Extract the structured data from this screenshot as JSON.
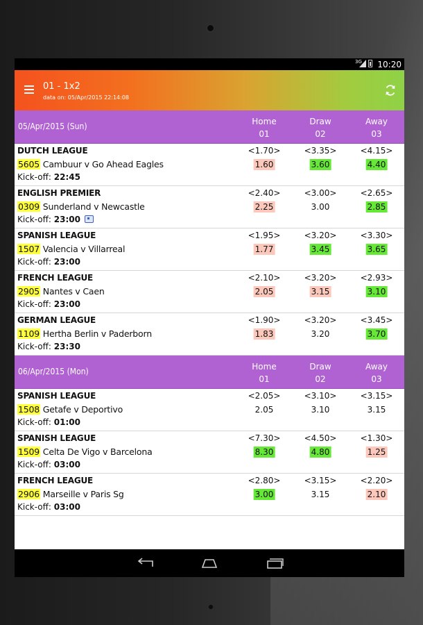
{
  "status_bar": {
    "network": "3G",
    "time": "10:20"
  },
  "app_bar": {
    "title": "01 - 1x2",
    "subtitle": "data on: 05/Apr/2015 22:14:08"
  },
  "icons": {
    "menu": "hamburger-menu-icon",
    "refresh": "refresh-icon"
  },
  "colors": {
    "header_purple": "#b062d2",
    "odds_up": "#fbc8bb",
    "odds_down": "#66e837",
    "code_highlight": "#ffff3a"
  },
  "sections": [
    {
      "date": "05/Apr/2015 (Sun)",
      "columns": [
        {
          "label": "Home",
          "code": "01"
        },
        {
          "label": "Draw",
          "code": "02"
        },
        {
          "label": "Away",
          "code": "03"
        }
      ],
      "matches": [
        {
          "league": "DUTCH LEAGUE",
          "code": "5605",
          "teams": "Cambuur v Go Ahead Eagles",
          "kick_label": "Kick-off:",
          "kick_time": "22:45",
          "tv": false,
          "odds": [
            {
              "orig": "<1.70>",
              "cur": "1.60",
              "trend": "up"
            },
            {
              "orig": "<3.35>",
              "cur": "3.60",
              "trend": "down"
            },
            {
              "orig": "<4.15>",
              "cur": "4.40",
              "trend": "down"
            }
          ]
        },
        {
          "league": "ENGLISH PREMIER",
          "code": "0309",
          "teams": "Sunderland v Newcastle",
          "kick_label": "Kick-off:",
          "kick_time": "23:00",
          "tv": true,
          "odds": [
            {
              "orig": "<2.40>",
              "cur": "2.25",
              "trend": "up"
            },
            {
              "orig": "<3.00>",
              "cur": "3.00",
              "trend": "none"
            },
            {
              "orig": "<2.65>",
              "cur": "2.85",
              "trend": "down"
            }
          ]
        },
        {
          "league": "SPANISH LEAGUE",
          "code": "1507",
          "teams": "Valencia v Villarreal",
          "kick_label": "Kick-off:",
          "kick_time": "23:00",
          "tv": false,
          "odds": [
            {
              "orig": "<1.95>",
              "cur": "1.77",
              "trend": "up"
            },
            {
              "orig": "<3.20>",
              "cur": "3.45",
              "trend": "down"
            },
            {
              "orig": "<3.30>",
              "cur": "3.65",
              "trend": "down"
            }
          ]
        },
        {
          "league": "FRENCH LEAGUE",
          "code": "2905",
          "teams": "Nantes v Caen",
          "kick_label": "Kick-off:",
          "kick_time": "23:00",
          "tv": false,
          "odds": [
            {
              "orig": "<2.10>",
              "cur": "2.05",
              "trend": "up"
            },
            {
              "orig": "<3.20>",
              "cur": "3.15",
              "trend": "up"
            },
            {
              "orig": "<2.93>",
              "cur": "3.10",
              "trend": "down"
            }
          ]
        },
        {
          "league": "GERMAN LEAGUE",
          "code": "1109",
          "teams": "Hertha Berlin v Paderborn",
          "kick_label": "Kick-off:",
          "kick_time": "23:30",
          "tv": false,
          "odds": [
            {
              "orig": "<1.90>",
              "cur": "1.83",
              "trend": "up"
            },
            {
              "orig": "<3.20>",
              "cur": "3.20",
              "trend": "none"
            },
            {
              "orig": "<3.45>",
              "cur": "3.70",
              "trend": "down"
            }
          ]
        }
      ]
    },
    {
      "date": "06/Apr/2015 (Mon)",
      "columns": [
        {
          "label": "Home",
          "code": "01"
        },
        {
          "label": "Draw",
          "code": "02"
        },
        {
          "label": "Away",
          "code": "03"
        }
      ],
      "matches": [
        {
          "league": "SPANISH LEAGUE",
          "code": "1508",
          "teams": "Getafe v Deportivo",
          "kick_label": "Kick-off:",
          "kick_time": "01:00",
          "tv": false,
          "odds": [
            {
              "orig": "<2.05>",
              "cur": "2.05",
              "trend": "none"
            },
            {
              "orig": "<3.10>",
              "cur": "3.10",
              "trend": "none"
            },
            {
              "orig": "<3.15>",
              "cur": "3.15",
              "trend": "none"
            }
          ]
        },
        {
          "league": "SPANISH LEAGUE",
          "code": "1509",
          "teams": "Celta De Vigo v Barcelona",
          "kick_label": "Kick-off:",
          "kick_time": "03:00",
          "tv": false,
          "odds": [
            {
              "orig": "<7.30>",
              "cur": "8.30",
              "trend": "down"
            },
            {
              "orig": "<4.50>",
              "cur": "4.80",
              "trend": "down"
            },
            {
              "orig": "<1.30>",
              "cur": "1.25",
              "trend": "up"
            }
          ]
        },
        {
          "league": "FRENCH LEAGUE",
          "code": "2906",
          "teams": "Marseille v Paris Sg",
          "kick_label": "Kick-off:",
          "kick_time": "03:00",
          "tv": false,
          "odds": [
            {
              "orig": "<2.80>",
              "cur": "3.00",
              "trend": "down"
            },
            {
              "orig": "<3.15>",
              "cur": "3.15",
              "trend": "none"
            },
            {
              "orig": "<2.20>",
              "cur": "2.10",
              "trend": "up"
            }
          ]
        }
      ]
    }
  ]
}
